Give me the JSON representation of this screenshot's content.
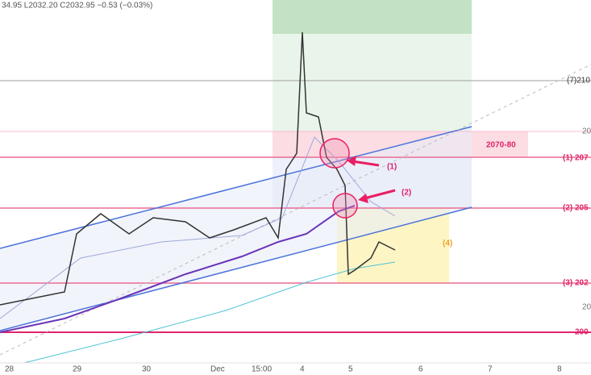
{
  "header": {
    "ohlc": "34.95 L2032.20 C2032.95 −0.53 (−0.03%)"
  },
  "price_labels": [
    "(7)210",
    "20",
    "2070-80",
    "(1) 207",
    "(2) 205",
    "(3) 202",
    "20",
    "200"
  ],
  "annotations": [
    "(1)",
    "(2)",
    "(4)"
  ],
  "x_labels": [
    "28",
    "29",
    "30",
    "Dec",
    "15:00",
    "4",
    "5",
    "6",
    "7",
    "8"
  ]
}
